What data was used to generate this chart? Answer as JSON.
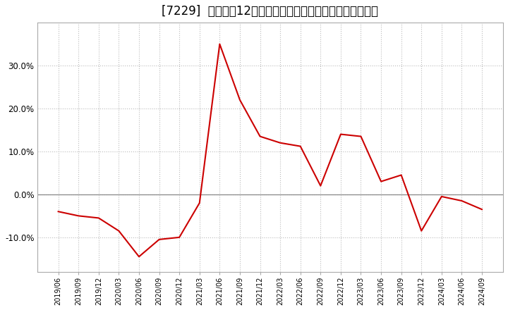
{
  "title": "[7229]  売上高の12か月移動合計の対前年同期増減率の推移",
  "x_labels": [
    "2019/06",
    "2019/09",
    "2019/12",
    "2020/03",
    "2020/06",
    "2020/09",
    "2020/12",
    "2021/03",
    "2021/06",
    "2021/09",
    "2021/12",
    "2022/03",
    "2022/06",
    "2022/09",
    "2022/12",
    "2023/03",
    "2023/06",
    "2023/09",
    "2023/12",
    "2024/03",
    "2024/06",
    "2024/09"
  ],
  "y_values": [
    -4.0,
    -5.0,
    -5.5,
    -8.5,
    -14.5,
    -10.5,
    -10.0,
    -2.0,
    35.0,
    22.0,
    13.5,
    12.0,
    11.2,
    2.0,
    14.0,
    13.5,
    3.0,
    4.5,
    -8.5,
    -0.5,
    -1.5,
    -3.5
  ],
  "line_color": "#cc0000",
  "background_color": "#ffffff",
  "plot_bg_color": "#ffffff",
  "ylim": [
    -18,
    40
  ],
  "yticks": [
    -10.0,
    0.0,
    10.0,
    20.0,
    30.0
  ],
  "zero_line_color": "#888888",
  "grid_color": "#bbbbbb",
  "title_fontsize": 12
}
